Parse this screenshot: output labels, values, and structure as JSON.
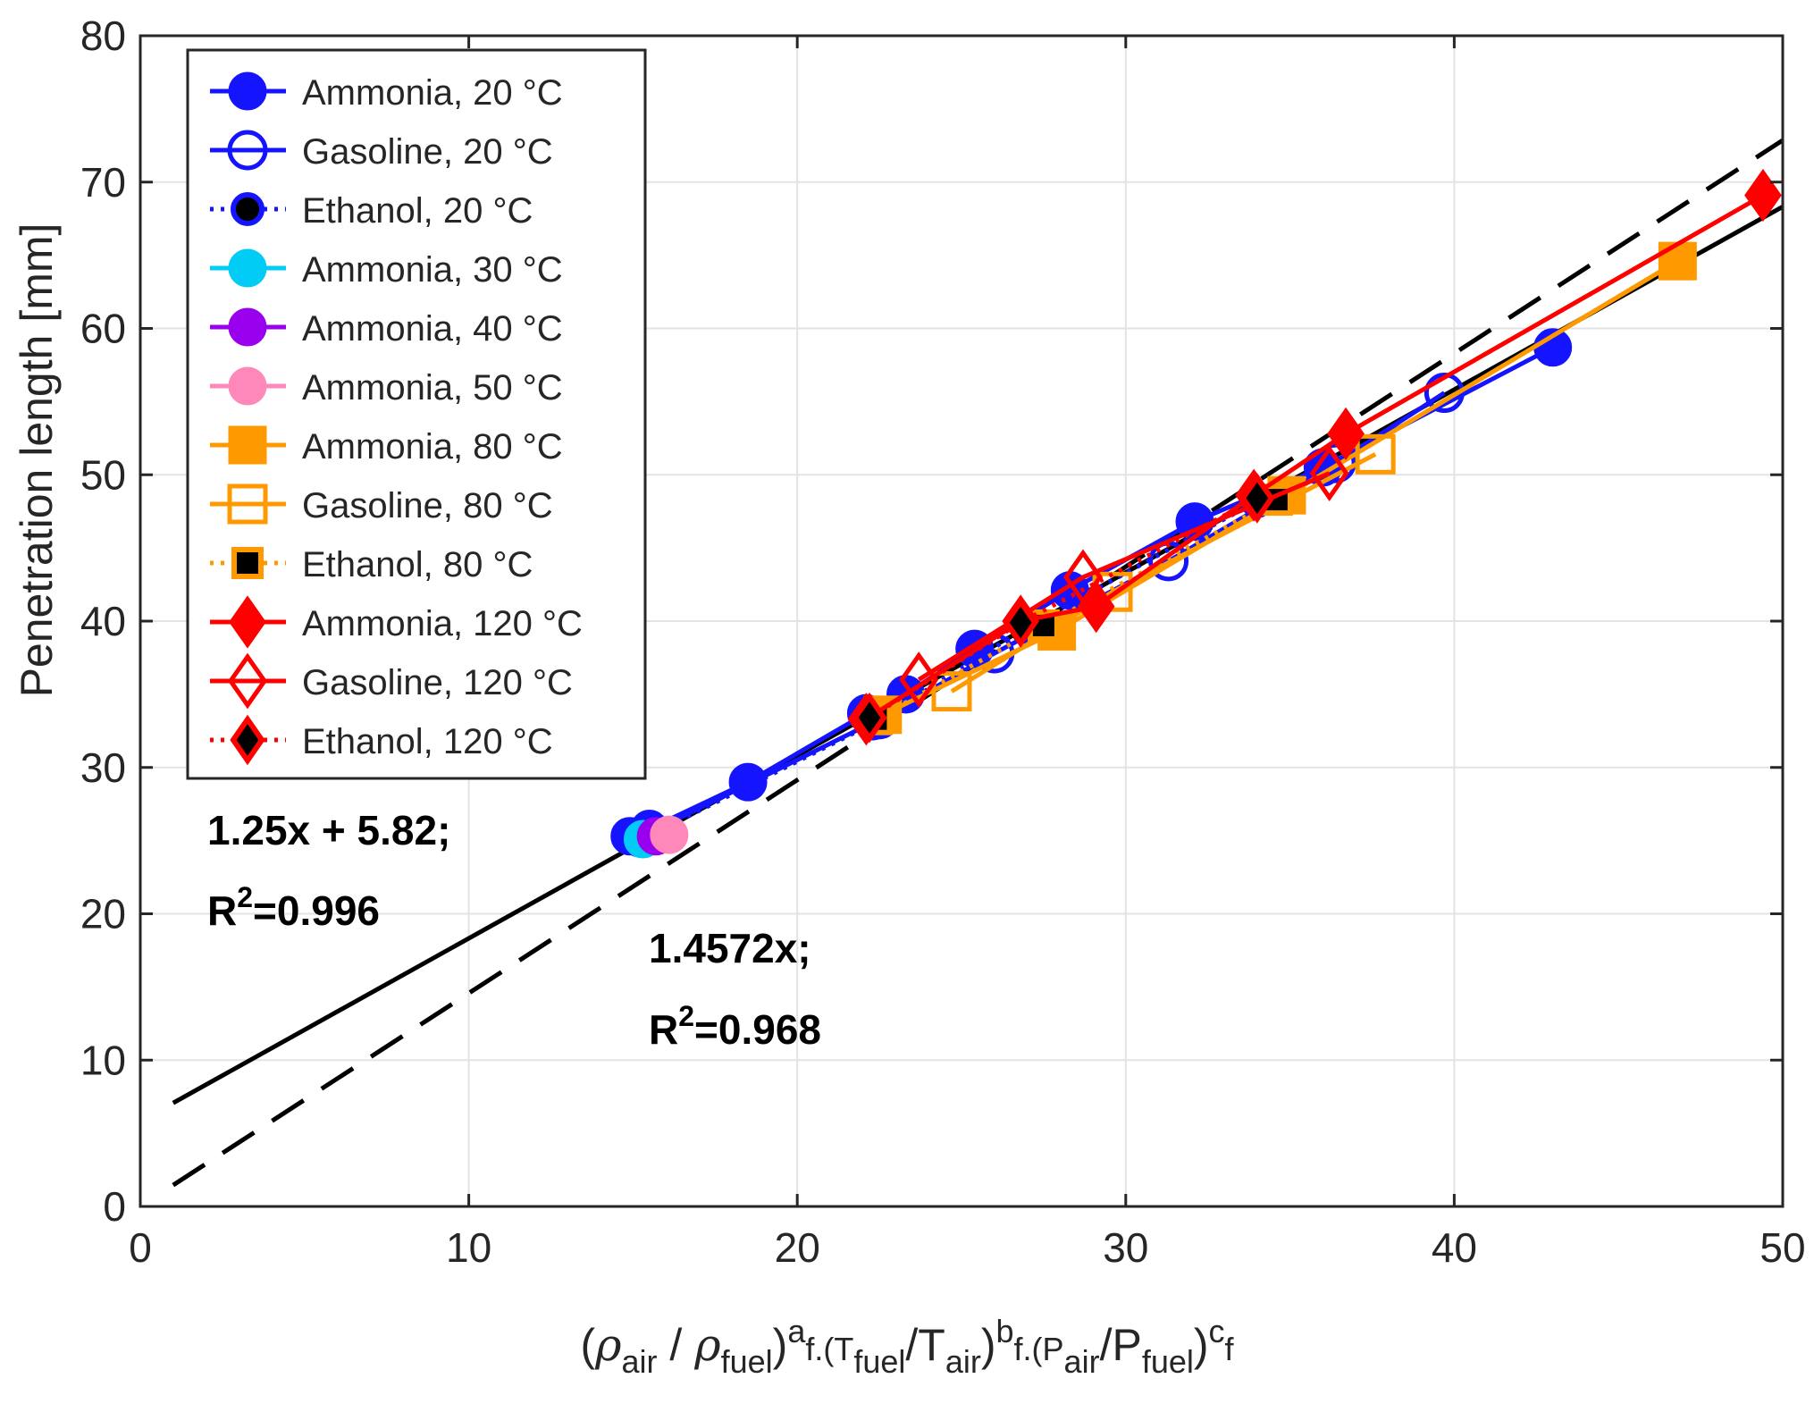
{
  "chart_data": {
    "type": "scatter",
    "xlim": [
      0,
      50
    ],
    "ylim": [
      0,
      80
    ],
    "xticks": [
      "0",
      "10",
      "20",
      "30",
      "40",
      "50"
    ],
    "yticks": [
      "0",
      "10",
      "20",
      "30",
      "40",
      "50",
      "60",
      "70",
      "80"
    ],
    "grid": true,
    "legend_position": "top-left",
    "ylabel": "Penetration length [mm]",
    "xlabel": {
      "open1": "(",
      "rho1": "ρ",
      "sub_air1": "air",
      "slash1": " / ",
      "rho2": "ρ",
      "sub_fuel1": "fuel",
      "close1": ")",
      "sup_a": "a",
      "mid1": "f.(T",
      "sub_fuel2": "fuel",
      "slash2": "/T",
      "sub_air2": "air",
      "close2": ")",
      "sup_b": "b",
      "mid2": "f.(P",
      "sub_air3": "air",
      "slash3": "/P",
      "sub_fuel3": "fuel",
      "close3": ")",
      "sup_c": "c",
      "tail": "f"
    },
    "annotations": {
      "fit1_eq": "1.25x + 5.82;",
      "fit1_r_prefix": "R",
      "fit1_r_sup": "2",
      "fit1_r_value": "=0.996",
      "fit2_eq": "1.4572x;",
      "fit2_r_prefix": "R",
      "fit2_r_sup": "2",
      "fit2_r_value": "=0.968"
    },
    "fits": [
      {
        "name": "1.25x + 5.82",
        "slope": 1.25,
        "intercept": 5.82,
        "x_range": [
          1,
          50
        ],
        "style": "solid",
        "color": "#000000"
      },
      {
        "name": "1.4572x",
        "slope": 1.4572,
        "intercept": 0,
        "x_range": [
          1,
          50
        ],
        "style": "dashed",
        "color": "#000000"
      }
    ],
    "series": [
      {
        "name": "Ammonia, 20 °C",
        "marker": "circle",
        "fill": "#1414ff",
        "stroke": "#1414ff",
        "line": "#1414ff",
        "dash": "solid",
        "x": [
          14.9,
          15.5,
          18.5,
          22.1,
          23.3,
          25.4,
          28.3,
          32.1,
          36.0,
          43.0
        ],
        "y": [
          25.3,
          25.8,
          29.0,
          33.7,
          35.0,
          38.1,
          42.1,
          46.8,
          50.5,
          58.7
        ]
      },
      {
        "name": "Gasoline, 20 °C",
        "marker": "circle",
        "fill": "none",
        "stroke": "#1414ff",
        "line": "#1414ff",
        "dash": "solid",
        "x": [
          15.3,
          22.5,
          26.0,
          31.3,
          36.4,
          39.7
        ],
        "y": [
          25.3,
          33.3,
          37.8,
          44.1,
          50.8,
          55.6
        ]
      },
      {
        "name": "Ethanol, 20 °C",
        "marker": "circle",
        "fill": "#000000",
        "stroke": "#1414ff",
        "line": "#1414ff",
        "dash": "dotted",
        "x": [
          15.2,
          22.3,
          27.0,
          34.0
        ],
        "y": [
          25.0,
          33.0,
          39.6,
          48.2
        ]
      },
      {
        "name": "Ammonia, 30 °C",
        "marker": "circle",
        "fill": "#00ccf5",
        "stroke": "#00ccf5",
        "line": "#00ccf5",
        "dash": "solid",
        "x": [
          15.3
        ],
        "y": [
          25.1
        ]
      },
      {
        "name": "Ammonia, 40 °C",
        "marker": "circle",
        "fill": "#9900ee",
        "stroke": "#9900ee",
        "line": "#9900ee",
        "dash": "solid",
        "x": [
          15.7
        ],
        "y": [
          25.3
        ]
      },
      {
        "name": "Ammonia, 50 °C",
        "marker": "circle",
        "fill": "#ff88bb",
        "stroke": "#ff88bb",
        "line": "#ff88bb",
        "dash": "solid",
        "x": [
          16.1
        ],
        "y": [
          25.4
        ]
      },
      {
        "name": "Ammonia, 80 °C",
        "marker": "square",
        "fill": "#ff9900",
        "stroke": "#ff9900",
        "line": "#ff9900",
        "dash": "solid",
        "x": [
          22.6,
          27.9,
          34.9,
          46.8
        ],
        "y": [
          33.6,
          39.3,
          48.6,
          64.6
        ]
      },
      {
        "name": "Gasoline, 80 °C",
        "marker": "square",
        "fill": "none",
        "stroke": "#ff9900",
        "line": "#ff9900",
        "dash": "solid",
        "x": [
          24.7,
          29.6,
          37.6
        ],
        "y": [
          35.2,
          42.0,
          51.4
        ]
      },
      {
        "name": "Ethanol, 80 °C",
        "marker": "square",
        "fill": "#000000",
        "stroke": "#ff9900",
        "line": "#ff9900",
        "dash": "dotted",
        "x": [
          22.4,
          27.5,
          34.6
        ],
        "y": [
          33.3,
          39.7,
          48.3
        ]
      },
      {
        "name": "Ammonia, 120 °C",
        "marker": "diamond",
        "fill": "#ff0000",
        "stroke": "#ff0000",
        "line": "#ff0000",
        "dash": "solid",
        "x": [
          22.1,
          26.8,
          29.1,
          33.9,
          36.7,
          49.4
        ],
        "y": [
          33.3,
          40.0,
          41.0,
          48.6,
          52.8,
          69.1
        ]
      },
      {
        "name": "Gasoline, 120 °C",
        "marker": "diamond",
        "fill": "none",
        "stroke": "#ff0000",
        "line": "#ff0000",
        "dash": "solid",
        "x": [
          23.7,
          28.7,
          36.2
        ],
        "y": [
          36.0,
          43.0,
          50.1
        ]
      },
      {
        "name": "Ethanol, 120 °C",
        "marker": "diamond",
        "fill": "#000000",
        "stroke": "#ff0000",
        "line": "#ff0000",
        "dash": "dotted",
        "x": [
          22.2,
          26.8,
          34.0
        ],
        "y": [
          33.4,
          39.9,
          48.4
        ]
      }
    ]
  }
}
